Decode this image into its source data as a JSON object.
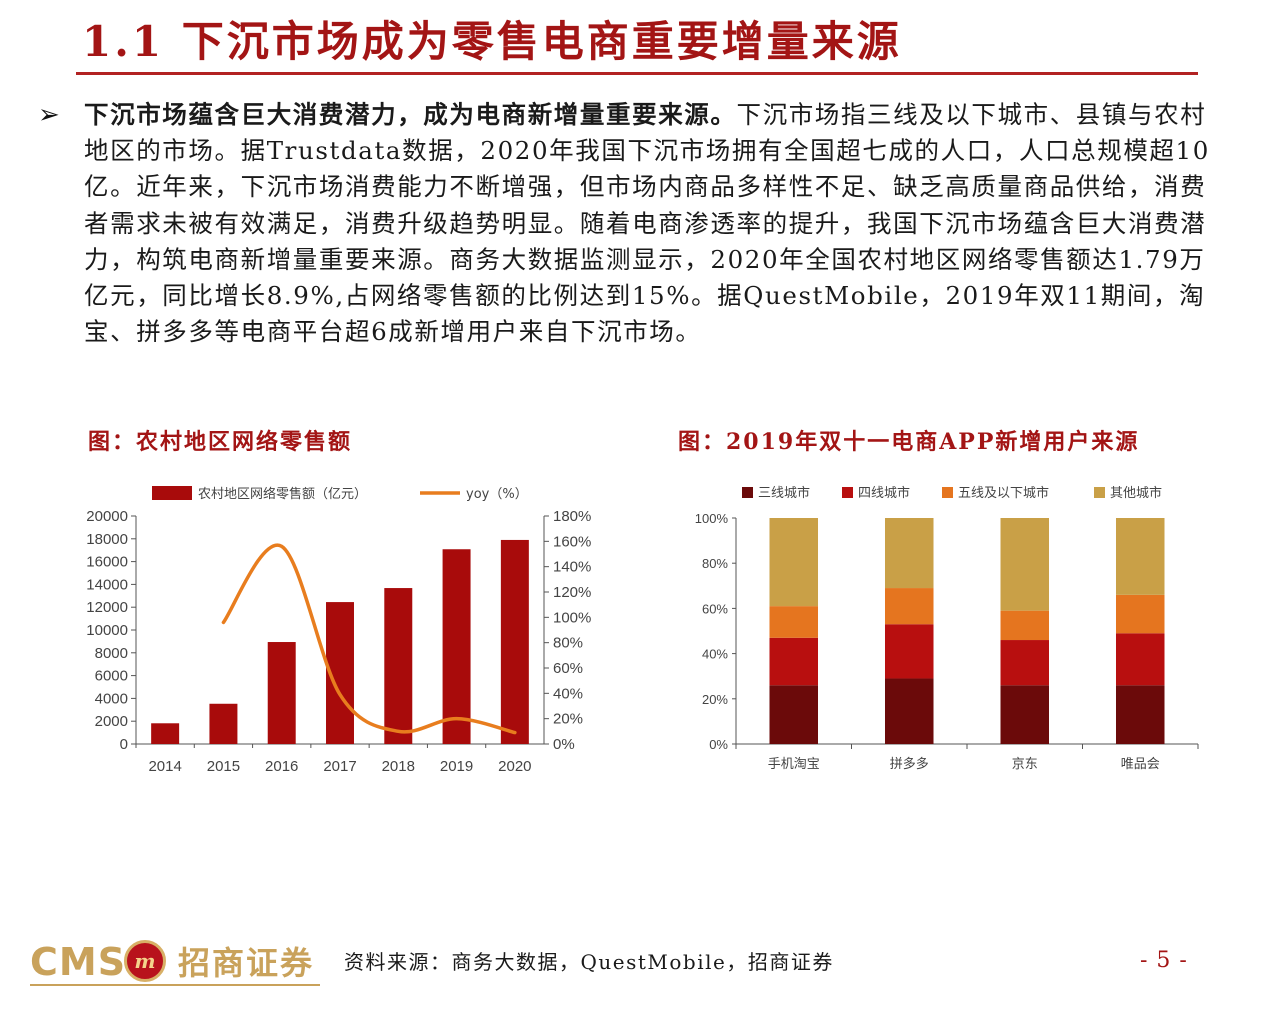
{
  "header": {
    "title": "1.1 下沉市场成为零售电商重要增量来源"
  },
  "body": {
    "bullet": "➢",
    "lead": "下沉市场蕴含巨大消费潜力，成为电商新增量重要来源。",
    "text": "下沉市场指三线及以下城市、县镇与农村地区的市场。据Trustdata数据，2020年我国下沉市场拥有全国超七成的人口，人口总规模超10亿。近年来，下沉市场消费能力不断增强，但市场内商品多样性不足、缺乏高质量商品供给，消费者需求未被有效满足，消费升级趋势明显。随着电商渗透率的提升，我国下沉市场蕴含巨大消费潜力，构筑电商新增量重要来源。商务大数据监测显示，2020年全国农村地区网络零售额达1.79万亿元，同比增长8.9%,占网络零售额的比例达到15%。据QuestMobile，2019年双11期间，淘宝、拼多多等电商平台超6成新增用户来自下沉市场。"
  },
  "figures": {
    "left_title": "图：农村地区网络零售额",
    "right_title": "图：2019年双十一电商APP新增用户来源"
  },
  "chart_data": [
    {
      "type": "bar",
      "categories": [
        "2014",
        "2015",
        "2016",
        "2017",
        "2018",
        "2019",
        "2020"
      ],
      "series": [
        {
          "name": "农村地区网络零售额（亿元）",
          "type": "bar",
          "axis": "left",
          "values": [
            1817,
            3530,
            8945,
            12449,
            13679,
            17083,
            17900
          ]
        },
        {
          "name": "yoy（%）",
          "type": "line",
          "axis": "right",
          "values": [
            null,
            96,
            156,
            39,
            10,
            20,
            9
          ]
        }
      ],
      "y_left": {
        "min": 0,
        "max": 20000,
        "ticks": [
          "0",
          "2000",
          "4000",
          "6000",
          "8000",
          "10000",
          "12000",
          "14000",
          "16000",
          "18000",
          "20000"
        ]
      },
      "y_right": {
        "min": 0,
        "max": 180,
        "ticks": [
          "0%",
          "20%",
          "40%",
          "60%",
          "80%",
          "100%",
          "120%",
          "140%",
          "160%",
          "180%"
        ]
      },
      "legend_position": "top",
      "colors": {
        "bar": "#a80b0b",
        "line": "#e87d1e"
      }
    },
    {
      "type": "bar",
      "stacked": true,
      "percent": true,
      "categories": [
        "手机淘宝",
        "拼多多",
        "京东",
        "唯品会"
      ],
      "series": [
        {
          "name": "三线城市",
          "values": [
            26,
            29,
            26,
            26
          ],
          "color": "#6b0a0a"
        },
        {
          "name": "四线城市",
          "values": [
            21,
            24,
            20,
            23
          ],
          "color": "#b80f0f"
        },
        {
          "name": "五线及以下城市",
          "values": [
            14,
            16,
            13,
            17
          ],
          "color": "#e5751f"
        },
        {
          "name": "其他城市",
          "values": [
            39,
            31,
            41,
            34
          ],
          "color": "#c9a047"
        }
      ],
      "y": {
        "min": 0,
        "max": 100,
        "ticks": [
          "0%",
          "20%",
          "40%",
          "60%",
          "80%",
          "100%"
        ]
      },
      "legend_position": "top"
    }
  ],
  "footer": {
    "logo_cms": "CMS",
    "logo_mark": "m",
    "logo_brand": "招商证券",
    "source": "资料来源：商务大数据，QuestMobile，招商证券",
    "page": "- 5 -"
  }
}
